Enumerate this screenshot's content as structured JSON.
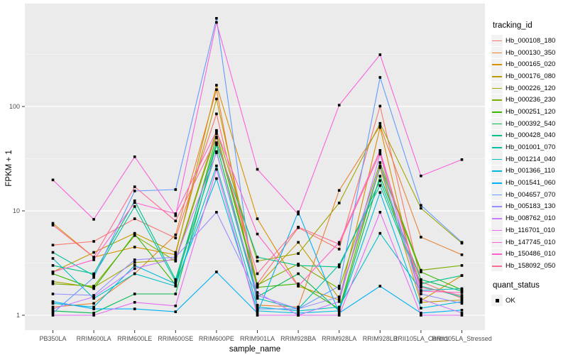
{
  "figure": {
    "background": "#FFFFFF",
    "panel_bg": "#EBEBEB",
    "grid_major_color": "#FFFFFF",
    "grid_minor_color": "#F6F6F6",
    "tick_label_color": "#4D4D4D",
    "tick_mark_color": "#333333"
  },
  "chart_data": {
    "type": "line",
    "title": "",
    "xlabel": "sample_name",
    "ylabel": "FPKM + 1",
    "y_scale": "log10",
    "y_ticks": [
      1,
      10,
      100
    ],
    "y_minor_ticks": [
      3.1623,
      31.623,
      316.23
    ],
    "ylim": [
      0.97,
      970
    ],
    "grid": true,
    "legend_position": "right",
    "point_marker": {
      "shape": "square",
      "color": "#000000",
      "size": 3.6
    },
    "categories": [
      "PB350LA",
      "RRIM600LA",
      "RRIM600LE",
      "RRIM600SE",
      "RRIM600PE",
      "RRIM901LA",
      "RRIM928BA",
      "RRIM928LA",
      "RRIM928LB",
      "RRII105LA_Control",
      "RRII105LA_Stressed"
    ],
    "series": [
      {
        "name": "Hb_000108_180",
        "color": "#F8766D",
        "values": [
          4.7,
          5.1,
          8.4,
          5.5,
          85,
          2.0,
          6.9,
          4.3,
          101,
          2.1,
          1.45
        ]
      },
      {
        "name": "Hb_000130_350",
        "color": "#EA8331",
        "values": [
          1.2,
          1.3,
          2.5,
          5.9,
          145,
          1.25,
          1.2,
          15.7,
          65,
          5.6,
          3.8
        ]
      },
      {
        "name": "Hb_000165_020",
        "color": "#D89000",
        "values": [
          7.6,
          3.6,
          4.5,
          3.8,
          160,
          8.4,
          1.9,
          1.4,
          63,
          1.38,
          2.4
        ]
      },
      {
        "name": "Hb_000176_080",
        "color": "#C09B00",
        "values": [
          2.6,
          4.0,
          6.1,
          4.0,
          118,
          1.9,
          5.0,
          1.45,
          26,
          1.33,
          1.4
        ]
      },
      {
        "name": "Hb_000226_120",
        "color": "#A3A500",
        "values": [
          2.1,
          1.85,
          3.2,
          3.4,
          59,
          3.3,
          3.9,
          11.9,
          69,
          10.6,
          4.9
        ]
      },
      {
        "name": "Hb_000236_230",
        "color": "#7CAE00",
        "values": [
          2.0,
          1.9,
          5.8,
          3.3,
          55,
          1.95,
          3.1,
          1.8,
          29,
          2.7,
          3.0
        ]
      },
      {
        "name": "Hb_000251_120",
        "color": "#39B600",
        "values": [
          2.5,
          1.8,
          6.0,
          1.95,
          51,
          1.85,
          2.0,
          1.15,
          27,
          2.6,
          1.75
        ]
      },
      {
        "name": "Hb_000392_540",
        "color": "#00BB4E",
        "values": [
          1.1,
          1.05,
          1.6,
          1.6,
          43,
          1.5,
          2.5,
          1.1,
          21.5,
          2.2,
          1.7
        ]
      },
      {
        "name": "Hb_000428_040",
        "color": "#00C087",
        "values": [
          3.0,
          2.5,
          12.5,
          2.2,
          45,
          3.6,
          3.0,
          2.9,
          19.5,
          2.0,
          2.4
        ]
      },
      {
        "name": "Hb_001001_070",
        "color": "#00C1A3",
        "values": [
          4.0,
          2.4,
          11.0,
          2.1,
          37,
          1.45,
          1.15,
          3.05,
          17.5,
          1.9,
          1.5
        ]
      },
      {
        "name": "Hb_001214_040",
        "color": "#00BFC4",
        "values": [
          3.5,
          1.45,
          2.5,
          1.9,
          27,
          1.2,
          1.1,
          1.2,
          6.1,
          1.73,
          1.8
        ]
      },
      {
        "name": "Hb_001366_110",
        "color": "#00BADE",
        "values": [
          1.3,
          1.2,
          3.0,
          2.0,
          20.4,
          1.1,
          1.05,
          1.1,
          15,
          1.17,
          1.35
        ]
      },
      {
        "name": "Hb_001541_060",
        "color": "#00B0F6",
        "values": [
          1.35,
          1.15,
          1.15,
          1.08,
          2.6,
          1.05,
          9.8,
          1.05,
          1.9,
          1.05,
          1.12
        ]
      },
      {
        "name": "Hb_004657_070",
        "color": "#619CFF",
        "values": [
          1.05,
          2.3,
          15.5,
          16,
          700,
          1.15,
          1.15,
          1.9,
          190,
          11.3,
          5.0
        ]
      },
      {
        "name": "Hb_005183_130",
        "color": "#9590FF",
        "values": [
          1.6,
          1.55,
          3.4,
          3.6,
          9.7,
          1.55,
          1.15,
          1.5,
          27,
          1.6,
          1.3
        ]
      },
      {
        "name": "Hb_008762_010",
        "color": "#C77CFF",
        "values": [
          1.15,
          1.5,
          2.8,
          3.5,
          36,
          1.65,
          1.0,
          1.35,
          35,
          1.43,
          1.05
        ]
      },
      {
        "name": "Hb_116701_010",
        "color": "#E76BF3",
        "values": [
          1.0,
          1.0,
          1.33,
          1.23,
          25,
          1.0,
          1.0,
          1.0,
          9.7,
          1.0,
          1.0
        ]
      },
      {
        "name": "Hb_147745_010",
        "color": "#FA62DB",
        "values": [
          19.8,
          8.3,
          33,
          9.0,
          640,
          25,
          9.3,
          103,
          314,
          21.6,
          31
        ]
      },
      {
        "name": "Hb_150486_010",
        "color": "#FF61CC",
        "values": [
          2.6,
          3.4,
          12.0,
          9.4,
          58,
          6.0,
          1.9,
          5.0,
          38,
          1.7,
          1.65
        ]
      },
      {
        "name": "Hb_158092_050",
        "color": "#FF6C91",
        "values": [
          7.3,
          3.6,
          17.0,
          8.0,
          50,
          2.5,
          7.0,
          4.8,
          36,
          1.85,
          1.55
        ]
      }
    ],
    "legend": {
      "tracking_title": "tracking_id",
      "quant_title": "quant_status",
      "quant_items": [
        {
          "label": "OK",
          "marker": "square",
          "color": "#000000"
        }
      ]
    }
  }
}
